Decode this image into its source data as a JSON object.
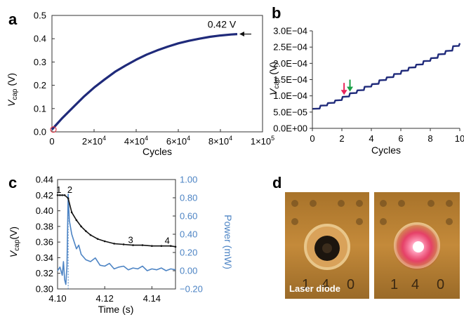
{
  "panels": {
    "a": {
      "letter": "a"
    },
    "b": {
      "letter": "b"
    },
    "c": {
      "letter": "c"
    },
    "d": {
      "letter": "d",
      "photo_label": "Laser diode"
    }
  },
  "chart_data": [
    {
      "panel": "a",
      "type": "line",
      "xlabel": "Cycles",
      "ylabel_main": "V",
      "ylabel_sub": "cap",
      "ylabel_unit": " (V)",
      "xlim": [
        0,
        100000
      ],
      "ylim": [
        0,
        0.5
      ],
      "xticks": [
        0,
        20000,
        40000,
        60000,
        80000,
        100000
      ],
      "xtick_labels": [
        {
          "base": "0",
          "exp": ""
        },
        {
          "base": "2×10",
          "exp": "4"
        },
        {
          "base": "4×10",
          "exp": "4"
        },
        {
          "base": "6×10",
          "exp": "4"
        },
        {
          "base": "8×10",
          "exp": "4"
        },
        {
          "base": "1×10",
          "exp": "5"
        }
      ],
      "yticks": [
        0,
        0.1,
        0.2,
        0.3,
        0.4,
        0.5
      ],
      "ytick_labels": [
        "0.0",
        "0.1",
        "0.2",
        "0.3",
        "0.4",
        "0.5"
      ],
      "series": [
        {
          "color": "#1f2a7a",
          "x": [
            0,
            2000,
            5000,
            10000,
            15000,
            20000,
            25000,
            30000,
            35000,
            40000,
            45000,
            50000,
            55000,
            60000,
            65000,
            70000,
            75000,
            80000,
            85000,
            88000
          ],
          "y": [
            0.01,
            0.03,
            0.06,
            0.105,
            0.15,
            0.19,
            0.225,
            0.258,
            0.285,
            0.31,
            0.332,
            0.35,
            0.366,
            0.38,
            0.391,
            0.4,
            0.408,
            0.414,
            0.418,
            0.42
          ]
        }
      ],
      "annotation": {
        "text": "0.42 V",
        "x": 88000,
        "y": 0.42
      },
      "start_marker": {
        "x": 0,
        "y": 0.01,
        "color": "#e23b4a"
      }
    },
    {
      "panel": "b",
      "type": "line",
      "xlabel": "Cycles",
      "ylabel_main": "V",
      "ylabel_sub": "cap",
      "ylabel_unit": " (V)",
      "xlim": [
        0,
        10
      ],
      "ylim": [
        0,
        0.0003
      ],
      "xticks": [
        0,
        2,
        4,
        6,
        8,
        10
      ],
      "xtick_labels": [
        "0",
        "2",
        "4",
        "6",
        "8",
        "10"
      ],
      "yticks": [
        0,
        5e-05,
        0.0001,
        0.00015,
        0.0002,
        0.00025,
        0.0003
      ],
      "ytick_labels": [
        "0.0E+00",
        "5.0E−05",
        "1.0E−04",
        "1.5E−04",
        "2.0E−04",
        "2.5E−04",
        "3.0E−04"
      ],
      "series": [
        {
          "color": "#1f2a7a",
          "step_times": [
            0,
            0.55,
            1.05,
            1.55,
            2.05,
            2.55,
            3.05,
            3.55,
            4.05,
            4.55,
            5.05,
            5.55,
            6.05,
            6.55,
            7.05,
            7.55,
            8.05,
            8.55,
            9.05,
            9.55
          ],
          "step_levels": [
            6e-05,
            7e-05,
            7.8e-05,
            8.6e-05,
            9.7e-05,
            0.000108,
            0.000117,
            0.000128,
            0.000136,
            0.000148,
            0.000157,
            0.000167,
            0.000177,
            0.000187,
            0.000196,
            0.000207,
            0.000216,
            0.000228,
            0.000238,
            0.000253
          ],
          "x_end": 10,
          "y_end": 0.000262
        }
      ],
      "arrows": [
        {
          "x": 2.15,
          "y": 0.000101,
          "color": "#e8245a"
        },
        {
          "x": 2.55,
          "y": 0.000111,
          "color": "#1aa047"
        }
      ]
    },
    {
      "panel": "c",
      "type": "line",
      "xlabel": "Time (s)",
      "ylabel_main": "V",
      "ylabel_sub": "cap",
      "ylabel_unit": "(V)",
      "ylabel_right": "Power (mW)",
      "xlim": [
        4.1,
        4.15
      ],
      "ylim": [
        0.3,
        0.44
      ],
      "y2lim": [
        -0.2,
        1.0
      ],
      "xticks": [
        4.1,
        4.12,
        4.14
      ],
      "xtick_labels": [
        "4.10",
        "4.12",
        "4.14"
      ],
      "yticks": [
        0.3,
        0.32,
        0.34,
        0.36,
        0.38,
        0.4,
        0.42,
        0.44
      ],
      "ytick_labels": [
        "0.30",
        "0.32",
        "0.34",
        "0.36",
        "0.38",
        "0.40",
        "0.42",
        "0.44"
      ],
      "y2ticks": [
        -0.2,
        0,
        0.2,
        0.4,
        0.6,
        0.8,
        1.0
      ],
      "y2tick_labels": [
        "−0.20",
        "0.00",
        "0.20",
        "0.40",
        "0.60",
        "0.80",
        "1.00"
      ],
      "series": [
        {
          "axis": "left",
          "color": "#111111",
          "x": [
            4.1,
            4.101,
            4.102,
            4.103,
            4.1045,
            4.106,
            4.108,
            4.11,
            4.112,
            4.114,
            4.117,
            4.12,
            4.124,
            4.128,
            4.132,
            4.136,
            4.14,
            4.144,
            4.148,
            4.15
          ],
          "y": [
            0.42,
            0.42,
            0.42,
            0.42,
            0.416,
            0.398,
            0.388,
            0.38,
            0.374,
            0.369,
            0.364,
            0.361,
            0.358,
            0.357,
            0.356,
            0.356,
            0.355,
            0.355,
            0.355,
            0.354
          ]
        },
        {
          "axis": "right",
          "color": "#4d84c4",
          "x": [
            4.1,
            4.101,
            4.102,
            4.1025,
            4.103,
            4.1035,
            4.104,
            4.1045,
            4.105,
            4.106,
            4.107,
            4.108,
            4.109,
            4.11,
            4.112,
            4.114,
            4.116,
            4.118,
            4.12,
            4.122,
            4.124,
            4.126,
            4.128,
            4.13,
            4.132,
            4.134,
            4.136,
            4.138,
            4.14,
            4.142,
            4.144,
            4.146,
            4.148,
            4.15
          ],
          "y": [
            0.0,
            0.04,
            -0.05,
            0.1,
            -0.1,
            -0.15,
            0.05,
            0.84,
            0.55,
            0.4,
            0.32,
            0.24,
            0.28,
            0.18,
            0.12,
            0.1,
            0.14,
            0.06,
            0.05,
            0.08,
            0.02,
            0.04,
            0.05,
            0.01,
            0.03,
            0.02,
            0.05,
            0.0,
            0.02,
            0.01,
            0.03,
            0.0,
            0.02,
            0.01
          ]
        }
      ],
      "point_labels": [
        {
          "text": "1",
          "x": 4.1005,
          "y": 0.423
        },
        {
          "text": "2",
          "x": 4.1052,
          "y": 0.423
        },
        {
          "text": "3",
          "x": 4.131,
          "y": 0.359
        },
        {
          "text": "4",
          "x": 4.1465,
          "y": 0.358
        }
      ],
      "marker_line": {
        "x": 4.1045,
        "color": "#4d84c4"
      }
    }
  ]
}
